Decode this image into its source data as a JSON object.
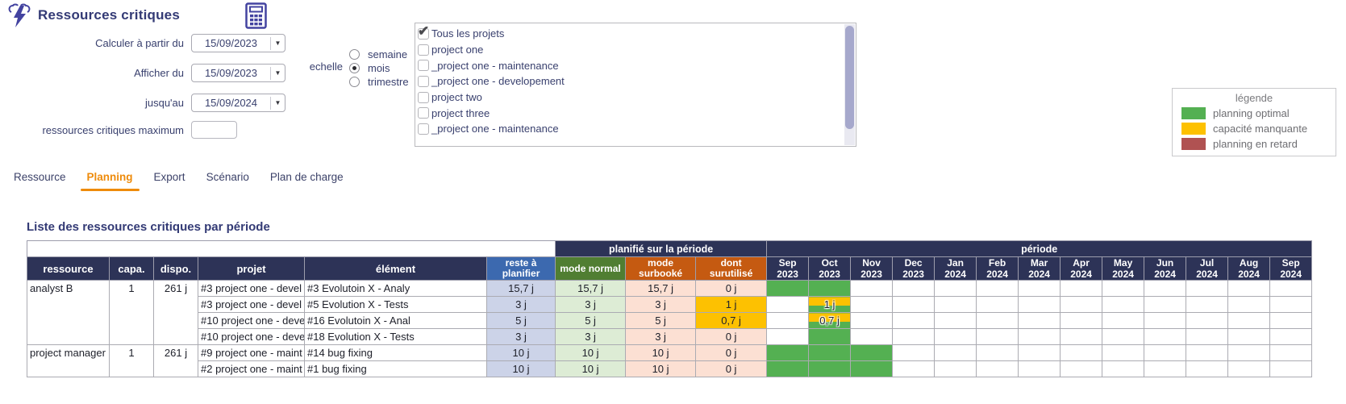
{
  "app": {
    "title": "Ressources critiques"
  },
  "form": {
    "fields": [
      {
        "label": "Calculer à partir du",
        "value": "15/09/2023"
      },
      {
        "label": "Afficher du",
        "value": "15/09/2023"
      },
      {
        "label": "jusqu'au",
        "value": "15/09/2024"
      }
    ],
    "max_label": "ressources critiques maximum",
    "max_value": "",
    "scale": {
      "label": "echelle",
      "options": [
        "semaine",
        "mois",
        "trimestre"
      ],
      "selected": "mois"
    }
  },
  "projects": {
    "items": [
      {
        "label": "Tous les projets",
        "checked": true
      },
      {
        "label": "project one",
        "checked": false
      },
      {
        "label": "_project one - maintenance",
        "checked": false
      },
      {
        "label": "_project one - developement",
        "checked": false
      },
      {
        "label": "project two",
        "checked": false
      },
      {
        "label": "project three",
        "checked": false
      },
      {
        "label": "_project one - maintenance",
        "checked": false
      }
    ]
  },
  "legend": {
    "title": "légende",
    "items": [
      {
        "label": "planning optimal",
        "color": "#54b052"
      },
      {
        "label": "capacité manquante",
        "color": "#fdc101"
      },
      {
        "label": "planning en retard",
        "color": "#b05252"
      }
    ]
  },
  "tabs": [
    {
      "label": "Ressource",
      "active": false
    },
    {
      "label": "Planning",
      "active": true
    },
    {
      "label": "Export",
      "active": false
    },
    {
      "label": "Scénario",
      "active": false
    },
    {
      "label": "Plan de charge",
      "active": false
    }
  ],
  "section": {
    "title": "Liste des ressources critiques par période"
  },
  "table": {
    "group_headers": {
      "planned": "planifié sur la période",
      "period": "période"
    },
    "col_headers": [
      "ressource",
      "capa.",
      "dispo.",
      "projet",
      "élément",
      "reste à planifier",
      "mode normal",
      "mode surbooké",
      "dont surutilisé"
    ],
    "months": [
      "Sep 2023",
      "Oct 2023",
      "Nov 2023",
      "Dec 2023",
      "Jan 2024",
      "Feb 2024",
      "Mar 2024",
      "Apr 2024",
      "May 2024",
      "Jun 2024",
      "Jul 2024",
      "Aug 2024",
      "Sep 2024"
    ],
    "groups": [
      {
        "ressource": "analyst B",
        "capa": "1",
        "dispo": "261 j",
        "rows": [
          {
            "projet": "#3 project one - devel",
            "element": "#3 Evolutoin X - Analy",
            "reste": "15,7 j",
            "normal": "15,7 j",
            "surbooke": "15,7 j",
            "surutilise": "0 j",
            "warn": false,
            "months": [
              "bar",
              "bar",
              "",
              "",
              "",
              "",
              "",
              "",
              "",
              "",
              "",
              "",
              ""
            ]
          },
          {
            "projet": "#3 project one - devel",
            "element": "#5 Evolution X - Tests",
            "reste": "3 j",
            "normal": "3 j",
            "surbooke": "3 j",
            "surutilise": "1 j",
            "warn": true,
            "months": [
              "",
              "split:1 j",
              "",
              "",
              "",
              "",
              "",
              "",
              "",
              "",
              "",
              "",
              ""
            ]
          },
          {
            "projet": "#10 project one - deve",
            "element": "#16 Evolutoin X - Anal",
            "reste": "5 j",
            "normal": "5 j",
            "surbooke": "5 j",
            "surutilise": "0,7 j",
            "warn": true,
            "months": [
              "",
              "split:0,7 j",
              "",
              "",
              "",
              "",
              "",
              "",
              "",
              "",
              "",
              "",
              ""
            ]
          },
          {
            "projet": "#10 project one - deve",
            "element": "#18 Evolution X - Tests",
            "reste": "3 j",
            "normal": "3 j",
            "surbooke": "3 j",
            "surutilise": "0 j",
            "warn": false,
            "months": [
              "",
              "bar",
              "",
              "",
              "",
              "",
              "",
              "",
              "",
              "",
              "",
              "",
              ""
            ]
          }
        ]
      },
      {
        "ressource": "project manager",
        "capa": "1",
        "dispo": "261 j",
        "rows": [
          {
            "projet": "#9 project one - maint",
            "element": "#14 bug fixing",
            "reste": "10 j",
            "normal": "10 j",
            "surbooke": "10 j",
            "surutilise": "0 j",
            "warn": false,
            "months": [
              "bar",
              "bar",
              "bar",
              "",
              "",
              "",
              "",
              "",
              "",
              "",
              "",
              "",
              ""
            ]
          },
          {
            "projet": "#2 project one - maint",
            "element": "#1 bug fixing",
            "reste": "10 j",
            "normal": "10 j",
            "surbooke": "10 j",
            "surutilise": "0 j",
            "warn": false,
            "months": [
              "bar",
              "bar",
              "bar",
              "",
              "",
              "",
              "",
              "",
              "",
              "",
              "",
              "",
              ""
            ]
          }
        ]
      }
    ]
  }
}
